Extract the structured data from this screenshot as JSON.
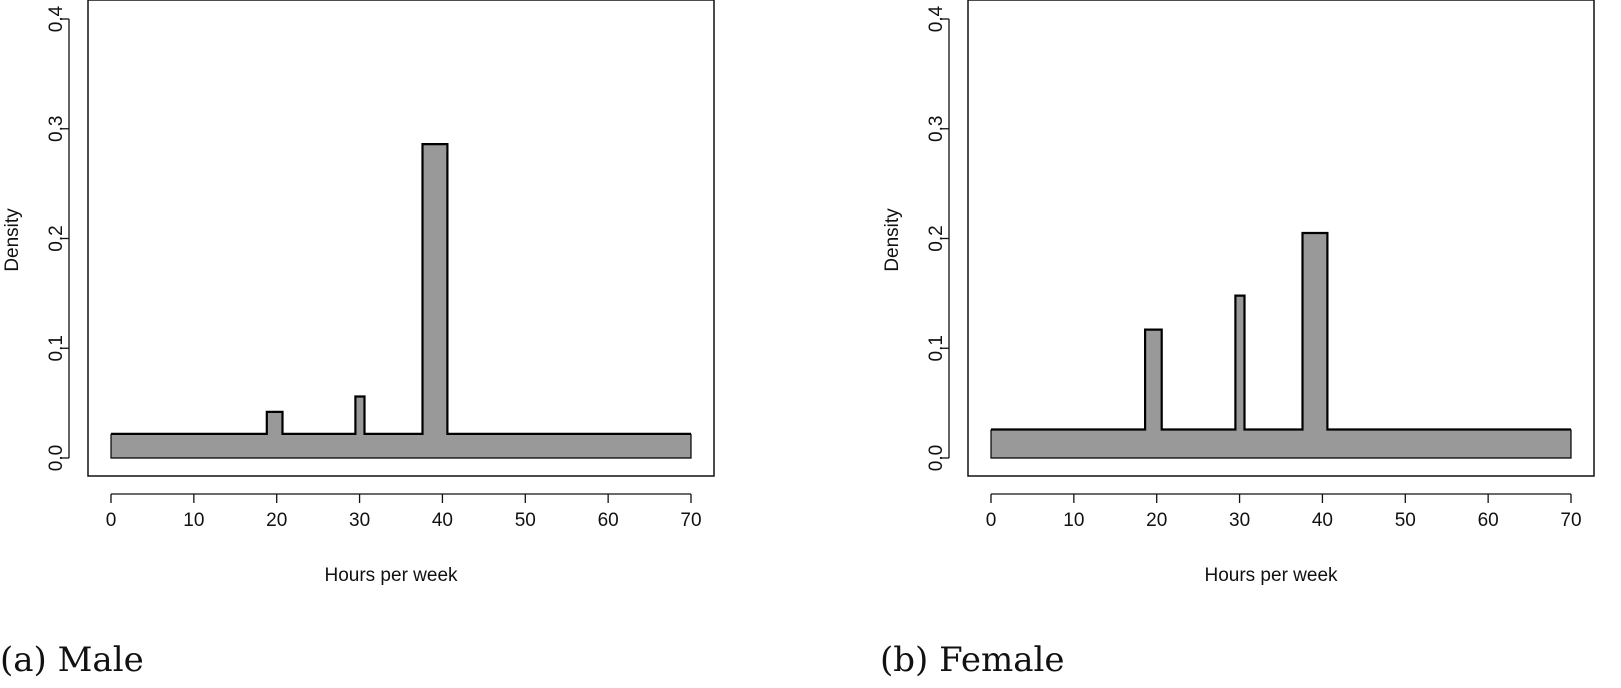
{
  "chart_data": [
    {
      "type": "area",
      "caption": "(a) Male",
      "xlabel": "Hours per week",
      "ylabel": "Density",
      "xlim": [
        0,
        70
      ],
      "ylim": [
        0,
        0.4
      ],
      "x_ticks": [
        0,
        10,
        20,
        30,
        40,
        50,
        60,
        70
      ],
      "y_ticks": [
        "0.0",
        "0.1",
        "0.2",
        "0.3",
        "0.4"
      ],
      "fill_color": "#999999",
      "stroke_color": "#000000",
      "series": [
        {
          "points": [
            [
              0,
              0.022
            ],
            [
              18.8,
              0.022
            ],
            [
              18.8,
              0.042
            ],
            [
              20.7,
              0.042
            ],
            [
              20.7,
              0.022
            ],
            [
              29.5,
              0.022
            ],
            [
              29.5,
              0.056
            ],
            [
              30.6,
              0.056
            ],
            [
              30.6,
              0.022
            ],
            [
              37.6,
              0.022
            ],
            [
              37.6,
              0.286
            ],
            [
              40.6,
              0.286
            ],
            [
              40.6,
              0.022
            ],
            [
              70,
              0.022
            ]
          ]
        }
      ]
    },
    {
      "type": "area",
      "caption": "(b) Female",
      "xlabel": "Hours per week",
      "ylabel": "Density",
      "xlim": [
        0,
        70
      ],
      "ylim": [
        0,
        0.4
      ],
      "x_ticks": [
        0,
        10,
        20,
        30,
        40,
        50,
        60,
        70
      ],
      "y_ticks": [
        "0.0",
        "0.1",
        "0.2",
        "0.3",
        "0.4"
      ],
      "fill_color": "#999999",
      "stroke_color": "#000000",
      "series": [
        {
          "points": [
            [
              0,
              0.026
            ],
            [
              18.6,
              0.026
            ],
            [
              18.6,
              0.117
            ],
            [
              20.6,
              0.117
            ],
            [
              20.6,
              0.026
            ],
            [
              29.5,
              0.026
            ],
            [
              29.5,
              0.148
            ],
            [
              30.6,
              0.148
            ],
            [
              30.6,
              0.026
            ],
            [
              37.6,
              0.026
            ],
            [
              37.6,
              0.205
            ],
            [
              40.6,
              0.205
            ],
            [
              40.6,
              0.026
            ],
            [
              70,
              0.026
            ]
          ]
        }
      ]
    }
  ]
}
